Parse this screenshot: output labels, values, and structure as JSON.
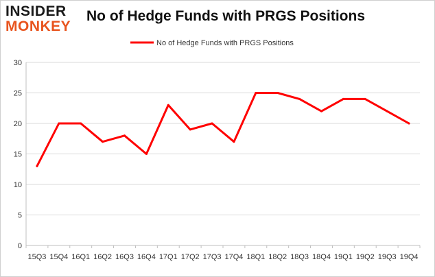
{
  "logo": {
    "line1": "INSIDER",
    "line2": "MONKEY"
  },
  "title": "No of Hedge Funds with PRGS Positions",
  "chart_data": {
    "type": "line",
    "title": "No of Hedge Funds with PRGS Positions",
    "categories": [
      "15Q3",
      "15Q4",
      "16Q1",
      "16Q2",
      "16Q3",
      "16Q4",
      "17Q1",
      "17Q2",
      "17Q3",
      "17Q4",
      "18Q1",
      "18Q2",
      "18Q3",
      "18Q4",
      "19Q1",
      "19Q2",
      "19Q3",
      "19Q4"
    ],
    "series": [
      {
        "name": "No of Hedge Funds with PRGS Positions",
        "values": [
          13,
          20,
          20,
          17,
          18,
          15,
          23,
          19,
          20,
          17,
          25,
          25,
          24,
          22,
          24,
          24,
          22,
          20
        ]
      }
    ],
    "ylim": [
      0,
      30
    ],
    "yticks": [
      0,
      5,
      10,
      15,
      20,
      25,
      30
    ],
    "grid": true,
    "legend": "top-center",
    "colors": {
      "line": "#ff0000",
      "grid": "#d9d9d9",
      "text": "#333333"
    }
  }
}
